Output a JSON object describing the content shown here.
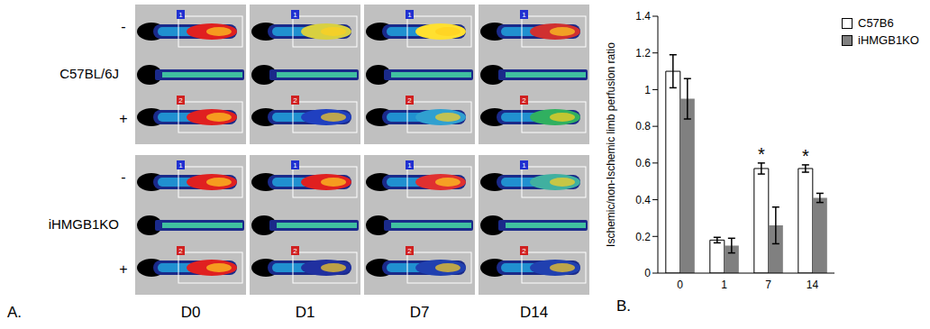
{
  "panel_a": {
    "label": "A.",
    "groups": [
      {
        "name": "C57BL/6J",
        "rows": [
          "-",
          "+"
        ]
      },
      {
        "name": "iHMGB1KO",
        "rows": [
          "-",
          "+"
        ]
      }
    ],
    "days": [
      "D0",
      "D1",
      "D7",
      "D14"
    ],
    "limb_labels": [
      "1",
      "2"
    ]
  },
  "chart_data": {
    "type": "bar",
    "panel_label": "B.",
    "y_label": "Ischemic/non-Ischemic limb perfusion ratio",
    "categories": [
      "0",
      "1",
      "7",
      "14"
    ],
    "series": [
      {
        "name": "C57B6",
        "color": "#ffffff",
        "values": [
          1.1,
          0.18,
          0.57,
          0.57
        ],
        "errors": [
          0.09,
          0.015,
          0.03,
          0.02
        ]
      },
      {
        "name": "iHMGB1KO",
        "color": "#808080",
        "values": [
          0.95,
          0.15,
          0.26,
          0.41
        ],
        "errors": [
          0.11,
          0.04,
          0.1,
          0.025
        ]
      }
    ],
    "ylim": [
      0,
      1.4
    ],
    "yticks": [
      0,
      0.2,
      0.4,
      0.6,
      0.8,
      1,
      1.2,
      1.4
    ],
    "grid": false,
    "legend": "upper right",
    "annotations": [
      {
        "text": "*",
        "category": "7",
        "series": "C57B6"
      },
      {
        "text": "*",
        "category": "14",
        "series": "C57B6"
      }
    ]
  }
}
